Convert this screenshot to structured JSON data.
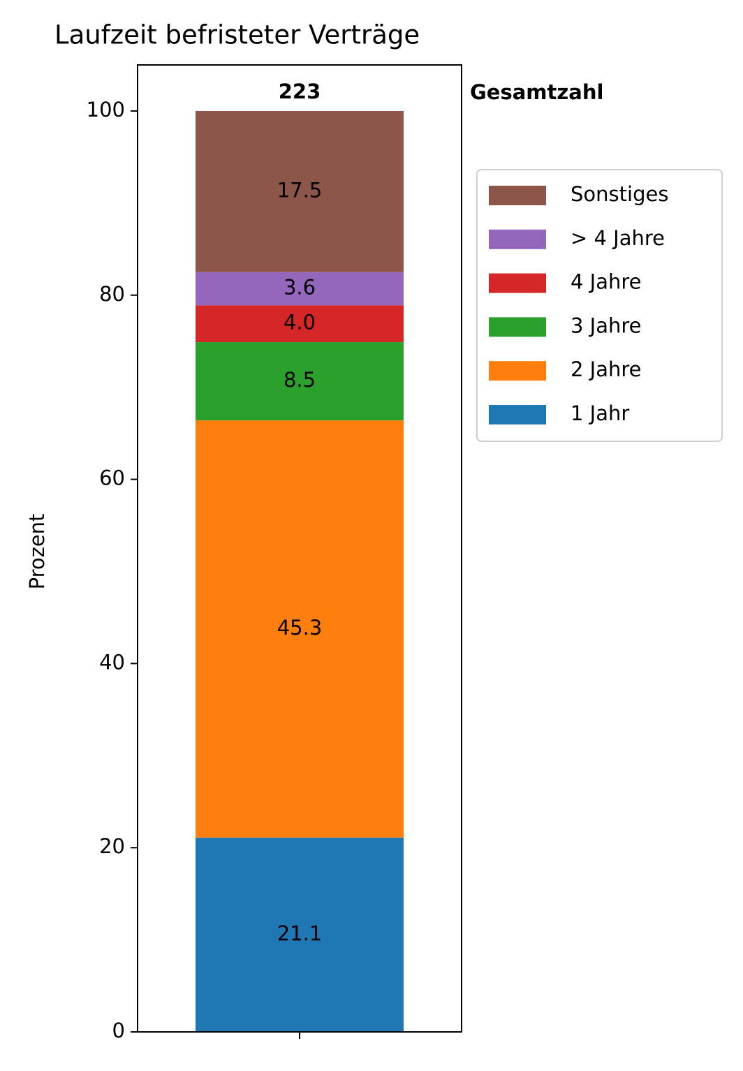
{
  "chart_data": {
    "type": "stacked_bar",
    "title": "Laufzeit befristeter Verträge",
    "y_label": "Prozent",
    "categories": [
      null
    ],
    "series": [
      {
        "name": "1 Jahr",
        "color": "#1f77b4",
        "values": [
          21.1
        ]
      },
      {
        "name": "2 Jahre",
        "color": "#ff7f0e",
        "values": [
          45.3
        ]
      },
      {
        "name": "3 Jahre",
        "color": "#2ca02c",
        "values": [
          8.5
        ]
      },
      {
        "name": "4 Jahre",
        "color": "#d62728",
        "values": [
          4
        ],
        "value_labels": [
          "4.0"
        ]
      },
      {
        "name": "> 4 Jahre",
        "color": "#9467bd",
        "values": [
          3.6
        ]
      },
      {
        "name": "Sonstiges",
        "color": "#8c564b",
        "values": [
          17.5
        ]
      }
    ],
    "total": 223,
    "total_label": "Gesamtzahl",
    "ylim": [
      0,
      105
    ],
    "yticks": [
      0,
      20,
      40,
      60,
      80,
      100
    ],
    "legend": "outside-right"
  }
}
